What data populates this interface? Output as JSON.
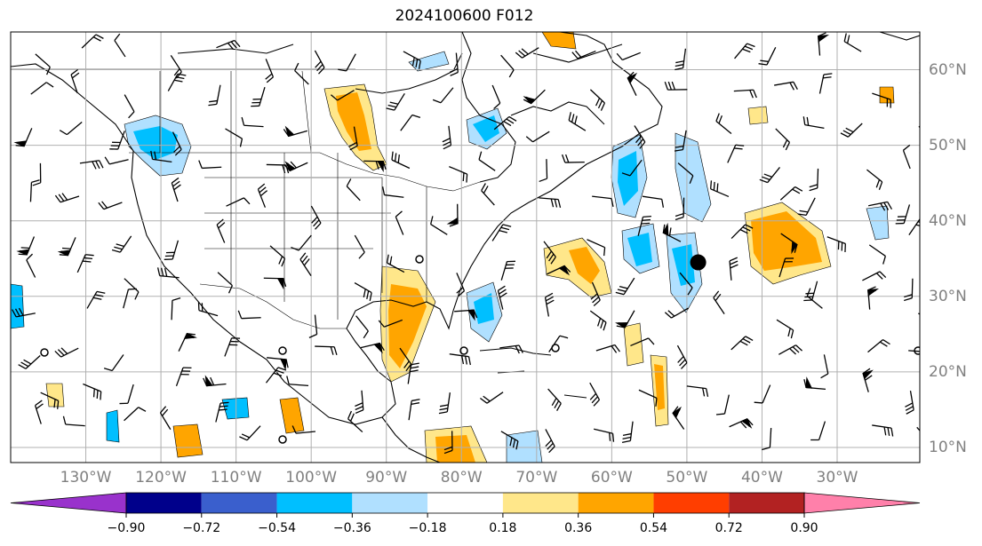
{
  "title": "2024100600 F012",
  "lon_labels": [
    "130°W",
    "120°W",
    "110°W",
    "100°W",
    "90°W",
    "80°W",
    "70°W",
    "60°W",
    "50°W",
    "40°W",
    "30°W"
  ],
  "lat_labels": [
    "60°N",
    "50°N",
    "40°N",
    "30°N",
    "20°N",
    "10°N"
  ],
  "colorbar": {
    "levels": [
      "−0.90",
      "−0.72",
      "−0.54",
      "−0.36",
      "−0.18",
      "0.18",
      "0.36",
      "0.54",
      "0.72",
      "0.90"
    ],
    "colors": [
      "#9932cc",
      "#00008b",
      "#3a5fcd",
      "#00bfff",
      "#b0e0ff",
      "#ffffff",
      "#ffe78a",
      "#ffa500",
      "#ff3e00",
      "#b22222",
      "#ff80aa"
    ]
  },
  "colors": {
    "grid": "#b0b0b0",
    "coast": "#000000",
    "neg_light": "#b0e0ff",
    "neg_mid": "#00bfff",
    "pos_light": "#ffe78a",
    "pos_mid": "#ffa500"
  },
  "map": {
    "lon_min": -140,
    "lon_max": -19,
    "lat_min": 8,
    "lat_max": 65,
    "meridians": [
      -130,
      -120,
      -110,
      -100,
      -90,
      -80,
      -70,
      -60,
      -50,
      -40,
      -30
    ],
    "parallels": [
      60,
      50,
      40,
      30,
      20,
      10
    ],
    "storm_center": {
      "lon": -48.5,
      "lat": 34.5
    }
  }
}
